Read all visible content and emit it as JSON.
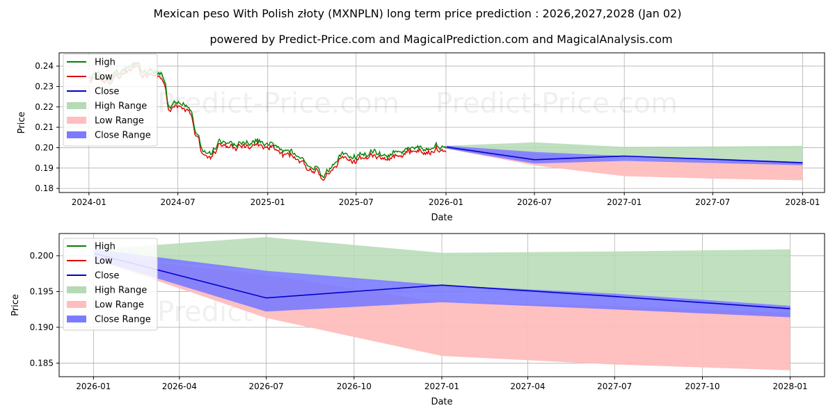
{
  "title": "Mexican peso With Polish złoty (MXNPLN) long term price prediction : 2026,2027,2028 (Jan 02)",
  "subtitle": "powered by Predict-Price.com and MagicalPrediction.com and MagicalAnalysis.com",
  "watermark": "Predict-Price.com",
  "colors": {
    "high": "#008000",
    "low": "#e00000",
    "close": "#0000cc",
    "high_range": "#b5dab5",
    "low_range": "#ffbdbd",
    "close_range": "#7b7bff",
    "grid": "#b0b0b0"
  },
  "legend": [
    "High",
    "Low",
    "Close",
    "High Range",
    "Low Range",
    "Close Range"
  ],
  "chart_data": [
    {
      "type": "line",
      "title": "Mexican peso With Polish złoty (MXNPLN) long term price prediction : 2026,2027,2028 (Jan 02)",
      "xlabel": "Date",
      "ylabel": "Price",
      "xlim": [
        "2023-11-01",
        "2028-02-15"
      ],
      "ylim": [
        0.178,
        0.2465
      ],
      "grid": true,
      "legend_position": "top-left",
      "x_ticks": [
        {
          "date": "2024-01-01",
          "label": "2024-01"
        },
        {
          "date": "2024-07-01",
          "label": "2024-07"
        },
        {
          "date": "2025-01-01",
          "label": "2025-01"
        },
        {
          "date": "2025-07-01",
          "label": "2025-07"
        },
        {
          "date": "2026-01-01",
          "label": "2026-01"
        },
        {
          "date": "2026-07-01",
          "label": "2026-07"
        },
        {
          "date": "2027-01-01",
          "label": "2027-01"
        },
        {
          "date": "2027-07-01",
          "label": "2027-07"
        },
        {
          "date": "2028-01-01",
          "label": "2028-01"
        }
      ],
      "y_ticks": [
        {
          "value": 0.18,
          "label": "0.18"
        },
        {
          "value": 0.19,
          "label": "0.19"
        },
        {
          "value": 0.2,
          "label": "0.20"
        },
        {
          "value": 0.21,
          "label": "0.21"
        },
        {
          "value": 0.22,
          "label": "0.22"
        },
        {
          "value": 0.23,
          "label": "0.23"
        },
        {
          "value": 0.24,
          "label": "0.24"
        }
      ],
      "historical_anchors": [
        [
          "2024-01-02",
          0.2345
        ],
        [
          "2024-01-25",
          0.2345
        ],
        [
          "2024-02-15",
          0.2335
        ],
        [
          "2024-03-05",
          0.2355
        ],
        [
          "2024-03-25",
          0.239
        ],
        [
          "2024-04-10",
          0.2415
        ],
        [
          "2024-04-18",
          0.236
        ],
        [
          "2024-05-05",
          0.2365
        ],
        [
          "2024-05-25",
          0.235
        ],
        [
          "2024-06-05",
          0.231
        ],
        [
          "2024-06-12",
          0.2185
        ],
        [
          "2024-06-25",
          0.2215
        ],
        [
          "2024-07-15",
          0.219
        ],
        [
          "2024-07-28",
          0.218
        ],
        [
          "2024-08-05",
          0.209
        ],
        [
          "2024-08-12",
          0.2055
        ],
        [
          "2024-08-20",
          0.1985
        ],
        [
          "2024-09-10",
          0.196
        ],
        [
          "2024-09-25",
          0.2025
        ],
        [
          "2024-10-15",
          0.2005
        ],
        [
          "2024-11-05",
          0.2015
        ],
        [
          "2024-12-05",
          0.2025
        ],
        [
          "2024-12-25",
          0.2015
        ],
        [
          "2025-01-15",
          0.2015
        ],
        [
          "2025-02-01",
          0.1965
        ],
        [
          "2025-03-05",
          0.1955
        ],
        [
          "2025-03-25",
          0.1905
        ],
        [
          "2025-04-15",
          0.1895
        ],
        [
          "2025-04-25",
          0.1855
        ],
        [
          "2025-05-10",
          0.1905
        ],
        [
          "2025-06-01",
          0.1955
        ],
        [
          "2025-07-01",
          0.1935
        ],
        [
          "2025-08-01",
          0.1965
        ],
        [
          "2025-09-01",
          0.1945
        ],
        [
          "2025-10-01",
          0.1975
        ],
        [
          "2025-11-01",
          0.1985
        ],
        [
          "2025-12-01",
          0.1995
        ],
        [
          "2026-01-02",
          0.2
        ]
      ],
      "forecast": {
        "dates": [
          "2026-01-02",
          "2026-07-01",
          "2027-01-01",
          "2027-07-01",
          "2028-01-01"
        ],
        "close": [
          0.2003,
          0.1941,
          0.1959,
          0.1943,
          0.1926
        ],
        "high_range": {
          "upper": [
            0.2009,
            0.2026,
            0.2004,
            0.2006,
            0.2009
          ],
          "lower": [
            0.2,
            0.1979,
            0.1956,
            0.1947,
            0.193
          ]
        },
        "low_range": {
          "upper": [
            0.2,
            0.1973,
            0.1935,
            0.193,
            0.192
          ],
          "lower": [
            0.1995,
            0.1913,
            0.186,
            0.1848,
            0.184
          ]
        },
        "close_range": {
          "upper": [
            0.2009,
            0.1979,
            0.1959,
            0.1947,
            0.193
          ],
          "lower": [
            0.1995,
            0.1922,
            0.1935,
            0.1925,
            0.1914
          ]
        }
      }
    },
    {
      "type": "area",
      "xlabel": "Date",
      "ylabel": "Price",
      "xlim": [
        "2025-11-26",
        "2028-02-06"
      ],
      "ylim": [
        0.1831,
        0.2031
      ],
      "grid": true,
      "legend_position": "top-left",
      "x_ticks": [
        {
          "date": "2026-01-01",
          "label": "2026-01"
        },
        {
          "date": "2026-04-01",
          "label": "2026-04"
        },
        {
          "date": "2026-07-01",
          "label": "2026-07"
        },
        {
          "date": "2026-10-01",
          "label": "2026-10"
        },
        {
          "date": "2027-01-01",
          "label": "2027-01"
        },
        {
          "date": "2027-04-01",
          "label": "2027-04"
        },
        {
          "date": "2027-07-01",
          "label": "2027-07"
        },
        {
          "date": "2027-10-01",
          "label": "2027-10"
        },
        {
          "date": "2028-01-01",
          "label": "2028-01"
        }
      ],
      "y_ticks": [
        {
          "value": 0.185,
          "label": "0.185"
        },
        {
          "value": 0.19,
          "label": "0.190"
        },
        {
          "value": 0.195,
          "label": "0.195"
        },
        {
          "value": 0.2,
          "label": "0.200"
        }
      ],
      "forecast": {
        "dates": [
          "2026-01-02",
          "2026-07-01",
          "2027-01-01",
          "2027-07-01",
          "2028-01-01"
        ],
        "close": [
          0.2003,
          0.1941,
          0.1959,
          0.1943,
          0.1926
        ],
        "high_range": {
          "upper": [
            0.2009,
            0.2026,
            0.2004,
            0.2006,
            0.2009
          ],
          "lower": [
            0.2,
            0.1979,
            0.1956,
            0.1947,
            0.193
          ]
        },
        "low_range": {
          "upper": [
            0.2,
            0.1973,
            0.1935,
            0.193,
            0.192
          ],
          "lower": [
            0.1995,
            0.1913,
            0.186,
            0.1848,
            0.184
          ]
        },
        "close_range": {
          "upper": [
            0.2009,
            0.1979,
            0.1959,
            0.1947,
            0.193
          ],
          "lower": [
            0.1995,
            0.1922,
            0.1935,
            0.1925,
            0.1914
          ]
        }
      }
    }
  ]
}
